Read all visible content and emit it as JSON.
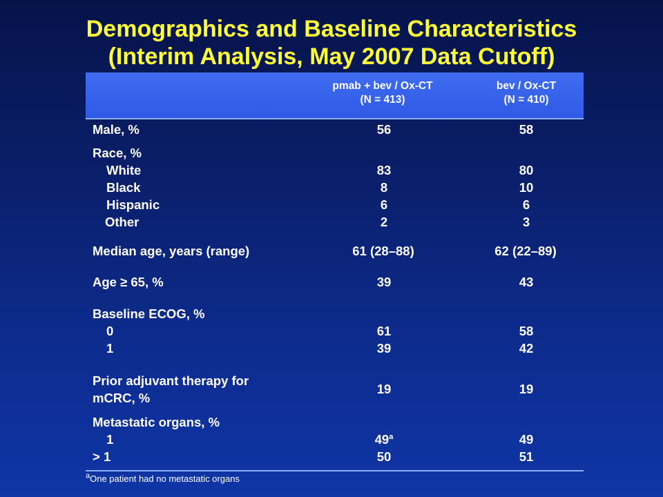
{
  "title": {
    "line1": "Demographics and Baseline Characteristics",
    "line2": "(Interim Analysis, May 2007 Data Cutoff)"
  },
  "columns": [
    {
      "line1": "pmab + bev / Ox-CT",
      "line2": "(N = 413)"
    },
    {
      "line1": "bev / Ox-CT",
      "line2": "(N = 410)"
    }
  ],
  "rows": {
    "male": {
      "label": "Male, %",
      "v1": "56",
      "v2": "58"
    },
    "race": {
      "label": "Race, %",
      "white": {
        "label": "White",
        "v1": "83",
        "v2": "80"
      },
      "black": {
        "label": "Black",
        "v1": "8",
        "v2": "10"
      },
      "hispanic": {
        "label": "Hispanic",
        "v1": "6",
        "v2": "6"
      },
      "other": {
        "label": "Other",
        "v1": "2",
        "v2": "3"
      }
    },
    "median_age": {
      "label": "Median age, years (range)",
      "v1": "61 (28–88)",
      "v2": "62 (22–89)"
    },
    "age65": {
      "label": "Age ≥ 65, %",
      "v1": "39",
      "v2": "43"
    },
    "ecog": {
      "label": "Baseline ECOG, %",
      "e0": {
        "label": "0",
        "v1": "61",
        "v2": "58"
      },
      "e1": {
        "label": "1",
        "v1": "39",
        "v2": "42"
      }
    },
    "prior_adjuvant": {
      "label1": "Prior adjuvant therapy for",
      "label2": "mCRC, %",
      "v1": "19",
      "v2": "19"
    },
    "metastatic": {
      "label": "Metastatic organs, %",
      "m1": {
        "label": "1",
        "v1": "49",
        "v1_sup": "a",
        "v2": "49"
      },
      "mgt1": {
        "label": "> 1",
        "v1": "50",
        "v2": "51"
      }
    }
  },
  "footnote": {
    "marker": "a",
    "text": "One patient had no metastatic organs"
  }
}
